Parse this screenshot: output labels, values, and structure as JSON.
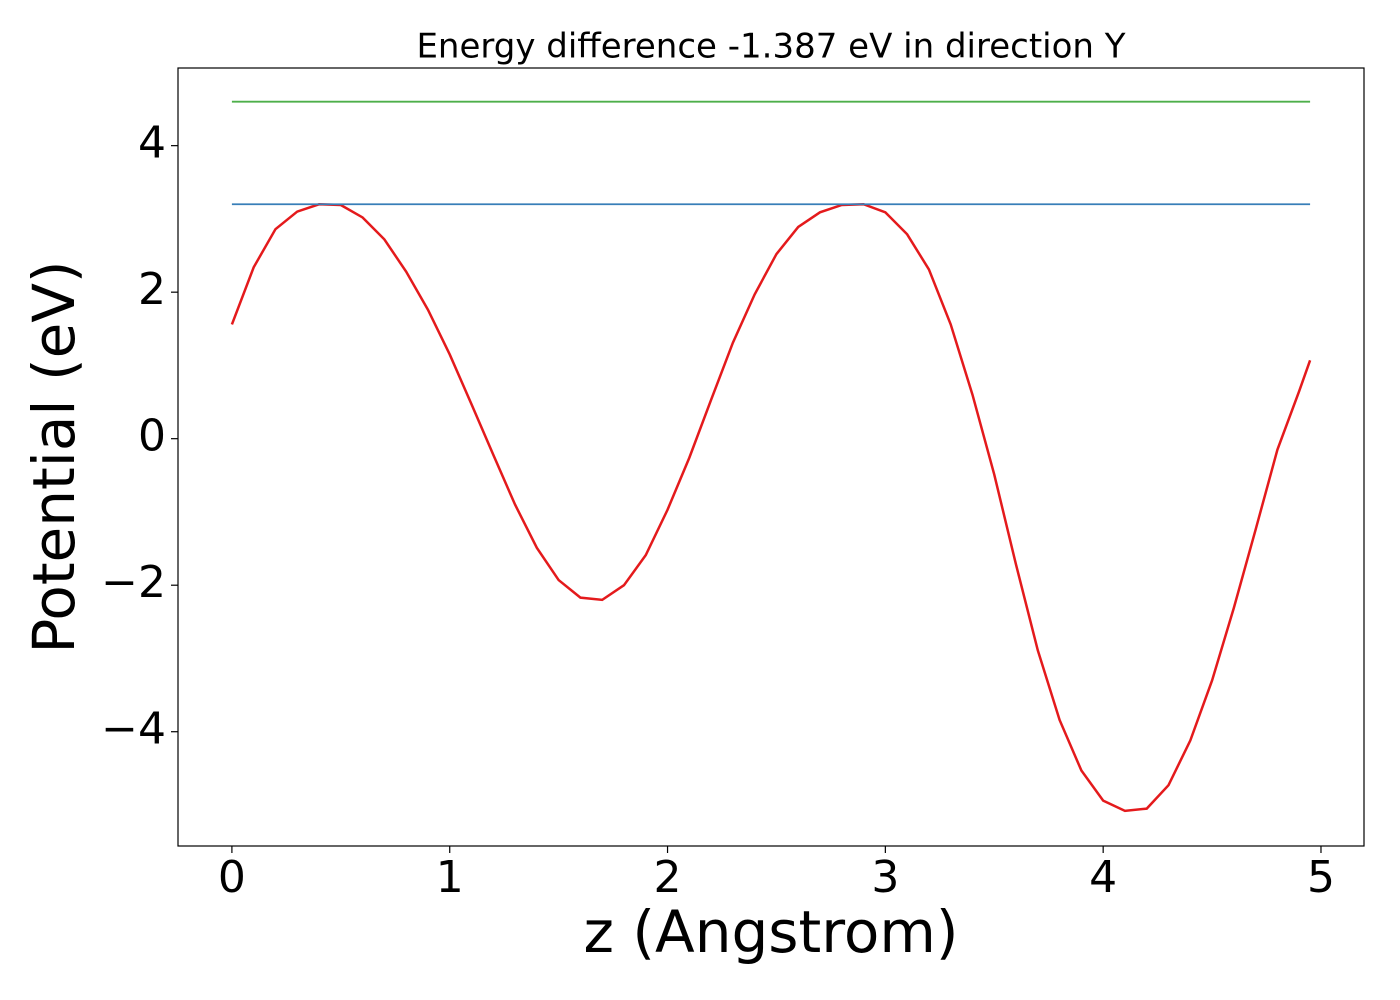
{
  "chart_data": {
    "type": "line",
    "title": "Energy difference -1.387 eV in direction Y",
    "xlabel": "z (Angstrom)",
    "ylabel": "Potential (eV)",
    "xlim": [
      -0.2475,
      5.1975
    ],
    "ylim": [
      -5.56,
      5.06
    ],
    "xticks": [
      0,
      1,
      2,
      3,
      4,
      5
    ],
    "yticks": [
      {
        "value": -4,
        "label": "−4"
      },
      {
        "value": -2,
        "label": "−2"
      },
      0,
      2,
      4
    ],
    "grid": false,
    "series": [
      {
        "color": "#e41a1c",
        "x": [
          0,
          0.1,
          0.2,
          0.3,
          0.4,
          0.5,
          0.6,
          0.7,
          0.8,
          0.9,
          1.0,
          1.1,
          1.2,
          1.3,
          1.4,
          1.5,
          1.6,
          1.7,
          1.8,
          1.9,
          2.0,
          2.1,
          2.2,
          2.3,
          2.4,
          2.5,
          2.6,
          2.7,
          2.8,
          2.9,
          3.0,
          3.1,
          3.2,
          3.3,
          3.4,
          3.5,
          3.6,
          3.7,
          3.8,
          3.9,
          4.0,
          4.1,
          4.2,
          4.3,
          4.4,
          4.5,
          4.6,
          4.7,
          4.8,
          4.9,
          4.95
        ],
        "values": [
          1.56,
          2.34,
          2.86,
          3.1,
          3.2,
          3.19,
          3.02,
          2.72,
          2.28,
          1.76,
          1.15,
          0.47,
          -0.22,
          -0.9,
          -1.49,
          -1.93,
          -2.17,
          -2.2,
          -2.0,
          -1.59,
          -0.97,
          -0.26,
          0.53,
          1.31,
          1.97,
          2.52,
          2.89,
          3.09,
          3.19,
          3.2,
          3.09,
          2.79,
          2.31,
          1.56,
          0.6,
          -0.49,
          -1.72,
          -2.89,
          -3.84,
          -4.53,
          -4.94,
          -5.08,
          -5.05,
          -4.73,
          -4.12,
          -3.3,
          -2.31,
          -1.24,
          -0.15,
          0.65,
          1.07
        ]
      },
      {
        "color": "#377eb8",
        "x": [
          0,
          4.95
        ],
        "values": [
          3.2,
          3.2
        ]
      },
      {
        "color": "#4daf4a",
        "x": [
          0,
          4.95
        ],
        "values": [
          4.6,
          4.6
        ]
      }
    ]
  }
}
